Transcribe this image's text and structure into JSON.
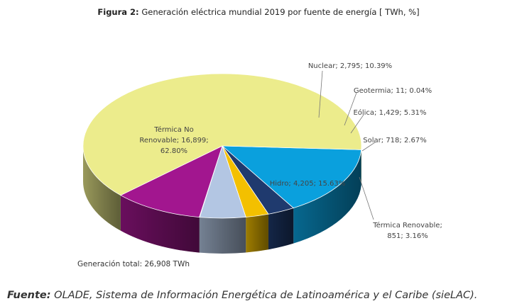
{
  "figure": {
    "title_prefix": "Figura 2:",
    "title": "Generación eléctrica mundial 2019 por fuente de energía [ TWh, %]",
    "total_label": "Generación total: 26,908 TWh",
    "source_prefix": "Fuente:",
    "source_text": "OLADE, Sistema de Información Energética de Latinoamérica y el Caribe (sieLAC)."
  },
  "chart_data": {
    "type": "pie",
    "title": "Generación eléctrica mundial 2019 por fuente de energía [ TWh, %]",
    "unit": "TWh",
    "total": 26908,
    "slices": [
      {
        "name": "Hidro",
        "value": 4205,
        "percent": 15.63,
        "color": "#0aa0dd",
        "label": "Hidro; 4,205; 15.63%"
      },
      {
        "name": "Térmica Renovable",
        "value": 851,
        "percent": 3.16,
        "color": "#1f3a6e",
        "label": "Térmica Renovable; 851; 3.16%"
      },
      {
        "name": "Solar",
        "value": 718,
        "percent": 2.67,
        "color": "#f3c000",
        "label": "Solar; 718; 2.67%"
      },
      {
        "name": "Eólica",
        "value": 1429,
        "percent": 5.31,
        "color": "#b3c6e3",
        "label": "Eólica; 1,429; 5.31%"
      },
      {
        "name": "Geotermia",
        "value": 11,
        "percent": 0.04,
        "color": "#8e9aa8",
        "label": "Geotermia; 11; 0.04%"
      },
      {
        "name": "Nuclear",
        "value": 2795,
        "percent": 10.39,
        "color": "#a2168f",
        "label": "Nuclear; 2,795; 10.39%"
      },
      {
        "name": "Térmica No Renovable",
        "value": 16899,
        "percent": 62.8,
        "color": "#ecec8c",
        "label": "Térmica No Renovable; 16,899; 62.80%"
      }
    ]
  }
}
